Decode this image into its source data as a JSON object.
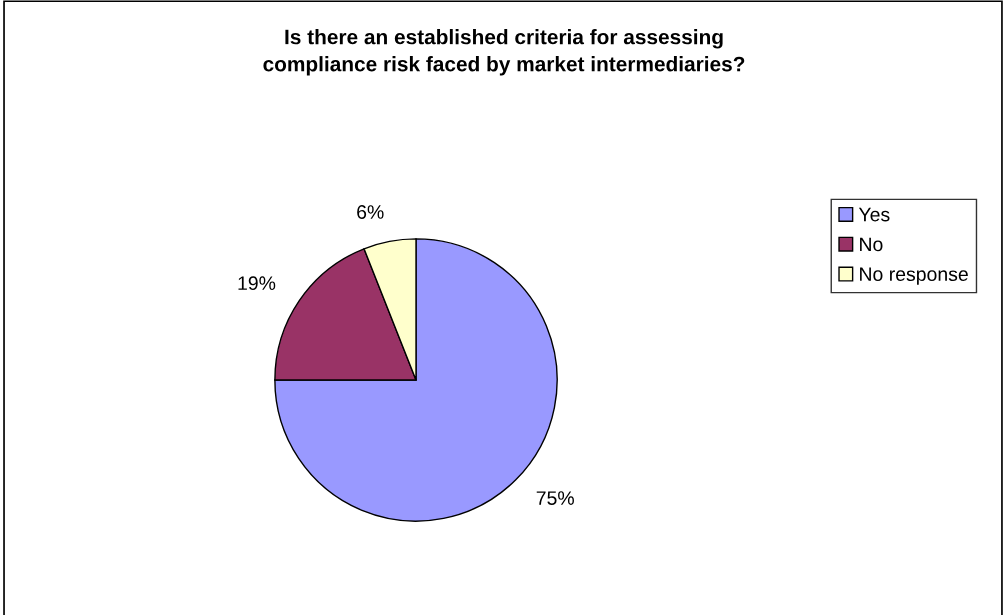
{
  "chart_data": {
    "type": "pie",
    "title": "Is there an established criteria for assessing\ncompliance risk faced by market intermediaries?",
    "categories": [
      "Yes",
      "No",
      "No response"
    ],
    "values": [
      75,
      19,
      6
    ],
    "colors": [
      "#9999ff",
      "#993366",
      "#ffffcc"
    ],
    "value_labels": [
      "75%",
      "19%",
      "6%"
    ],
    "legend": "right"
  }
}
